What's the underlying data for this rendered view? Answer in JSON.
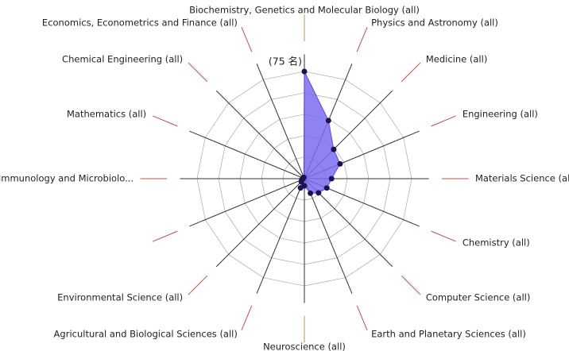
{
  "chart_data": {
    "type": "radar",
    "categories": [
      "Biochemistry, Genetics and Molecular Biology (all)",
      "Physics and Astronomy (all)",
      "Medicine (all)",
      "Engineering (all)",
      "Materials Science (all)",
      "Chemistry (all)",
      "Computer Science (all)",
      "Earth and Planetary Sciences (all)",
      "Neuroscience (all)",
      "Agricultural and Biological Sciences (all)",
      "Environmental Science (all)",
      null,
      "Immunology and Microbiolo...",
      "Mathematics (all)",
      "Chemical Engineering (all)",
      "Economics, Econometrics and Finance (all)"
    ],
    "values": [
      75,
      44,
      29,
      27,
      19,
      17,
      14,
      11,
      5,
      7,
      3,
      2,
      1,
      1,
      1,
      1
    ],
    "color": "#7b6cf0",
    "marker_color": "#1c1250",
    "ylim": [
      0,
      75
    ],
    "yticks": [
      {
        "value": 75,
        "label": "(75 名)"
      }
    ],
    "gridlines": [
      15,
      30,
      45,
      60,
      75
    ],
    "grid": true
  }
}
